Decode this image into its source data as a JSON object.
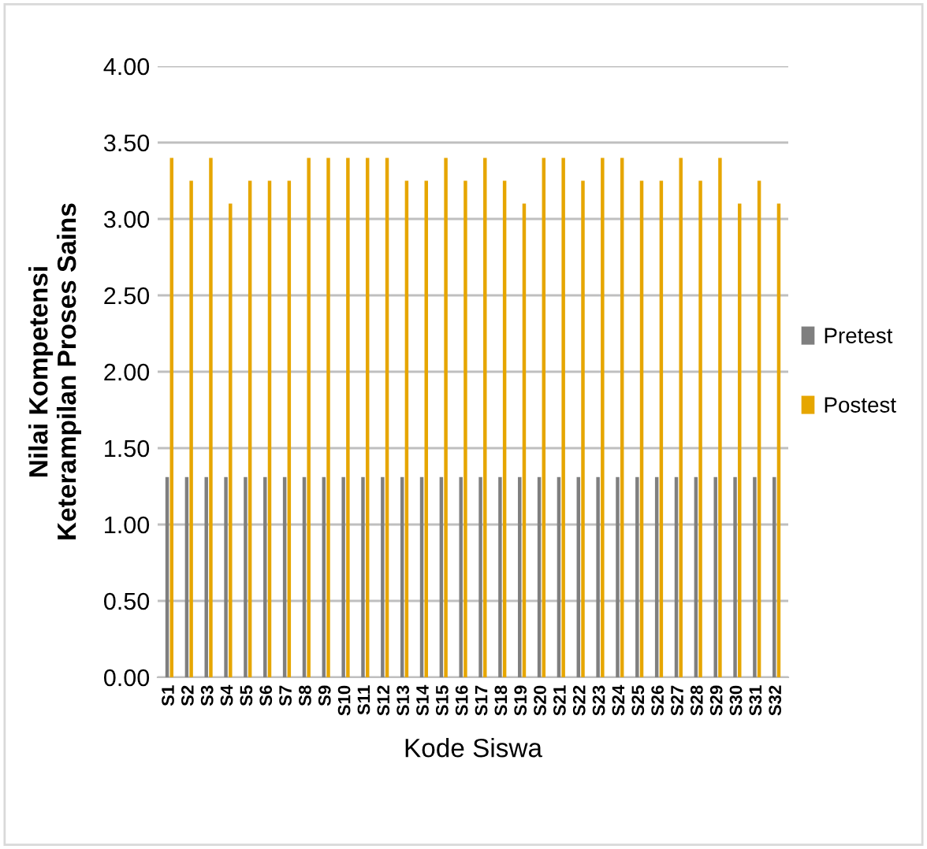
{
  "chart_data": {
    "type": "bar",
    "xlabel": "Kode Siswa",
    "ylabel": "Nilai Kompetensi\nKeterampilan Proses Sains",
    "categories": [
      "S1",
      "S2",
      "S3",
      "S4",
      "S5",
      "S6",
      "S7",
      "S8",
      "S9",
      "S10",
      "S11",
      "S12",
      "S13",
      "S14",
      "S15",
      "S16",
      "S17",
      "S18",
      "S19",
      "S20",
      "S21",
      "S22",
      "S23",
      "S24",
      "S25",
      "S26",
      "S27",
      "S28",
      "S29",
      "S30",
      "S31",
      "S32"
    ],
    "series": [
      {
        "name": "Pretest",
        "color": "#7f7f7f",
        "values": [
          1.31,
          1.31,
          1.31,
          1.31,
          1.31,
          1.31,
          1.31,
          1.31,
          1.31,
          1.31,
          1.31,
          1.31,
          1.31,
          1.31,
          1.31,
          1.31,
          1.31,
          1.31,
          1.31,
          1.31,
          1.31,
          1.31,
          1.31,
          1.31,
          1.31,
          1.31,
          1.31,
          1.31,
          1.31,
          1.31,
          1.31,
          1.31
        ]
      },
      {
        "name": "Postest",
        "color": "#e6a600",
        "values": [
          3.4,
          3.25,
          3.4,
          3.1,
          3.25,
          3.25,
          3.25,
          3.4,
          3.4,
          3.4,
          3.4,
          3.4,
          3.25,
          3.25,
          3.4,
          3.25,
          3.4,
          3.25,
          3.1,
          3.4,
          3.4,
          3.25,
          3.4,
          3.4,
          3.25,
          3.25,
          3.4,
          3.25,
          3.4,
          3.1,
          3.25,
          3.1
        ]
      }
    ],
    "ylim": [
      0,
      4
    ],
    "yticks": [
      {
        "value": 0,
        "label": "0.00"
      },
      {
        "value": 0.5,
        "label": "0.50"
      },
      {
        "value": 1,
        "label": "1.00"
      },
      {
        "value": 1.5,
        "label": "1.50"
      },
      {
        "value": 2,
        "label": "2.00"
      },
      {
        "value": 2.5,
        "label": "2.50"
      },
      {
        "value": 3,
        "label": "3.00"
      },
      {
        "value": 3.5,
        "label": "3.50"
      },
      {
        "value": 4,
        "label": "4.00"
      }
    ],
    "grid": "y",
    "legend": "right"
  }
}
